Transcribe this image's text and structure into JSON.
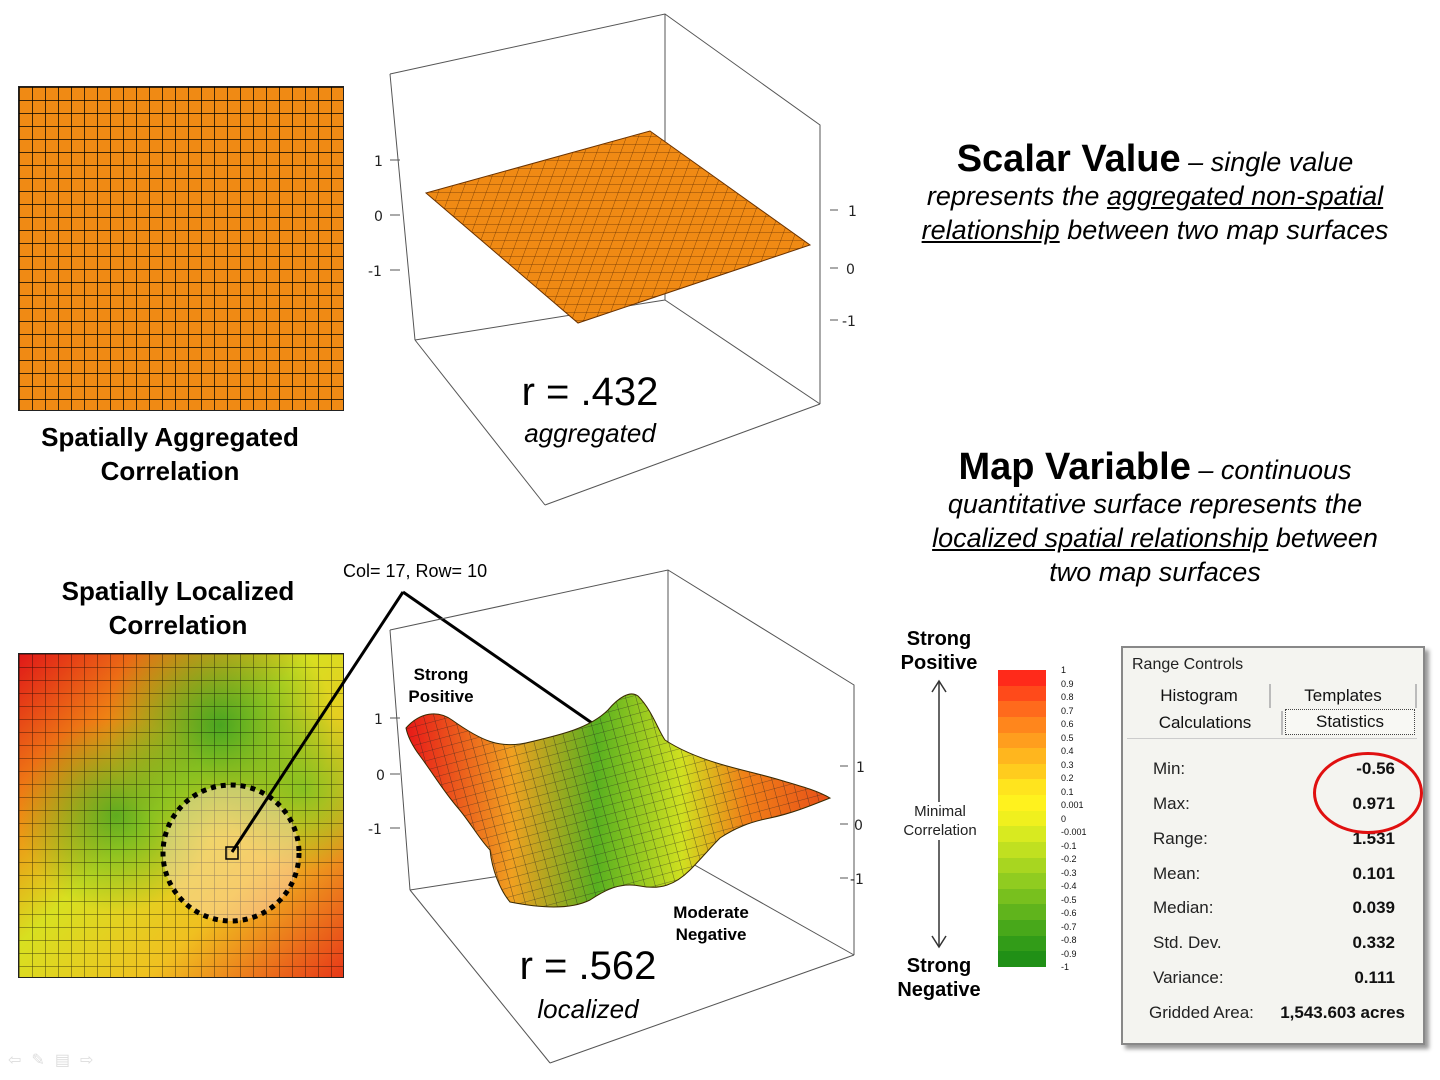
{
  "top": {
    "caption_line1": "Spatially Aggregated",
    "caption_line2": "Correlation",
    "r_value": "r = .432",
    "r_label": "aggregated",
    "z_ticks": [
      "1",
      "0",
      "-1"
    ],
    "right_ticks": [
      "1",
      "0",
      "-1"
    ]
  },
  "bottom": {
    "caption_line1": "Spatially Localized",
    "caption_line2": "Correlation",
    "cell_label": "Col= 17, Row= 10",
    "r_value": "r = .562",
    "r_label": "localized",
    "peak_label_1": "Strong",
    "peak_label_2": "Positive",
    "valley_label_1": "Moderate",
    "valley_label_2": "Negative",
    "z_ticks": [
      "1",
      "0",
      "-1"
    ],
    "right_ticks": [
      "1",
      "0",
      "-1"
    ]
  },
  "scalar": {
    "title": "Scalar Value",
    "dash": "–",
    "line1": "single value",
    "line2a": "represents the",
    "line2u": "aggregated non-spatial",
    "line3u": "relationship",
    "line3b": "between two map surfaces"
  },
  "mapvar": {
    "title": "Map Variable",
    "dash": "–",
    "line1": "continuous",
    "line2": "quantitative surface represents the",
    "line3u": "localized spatial relationship",
    "line3b": "between",
    "line4": "two map surfaces"
  },
  "legend": {
    "top_1": "Strong",
    "top_2": "Positive",
    "mid_1": "Minimal",
    "mid_2": "Correlation",
    "bottom_1": "Strong",
    "bottom_2": "Negative",
    "values": [
      "1",
      "0.9",
      "0.8",
      "0.7",
      "0.6",
      "0.5",
      "0.4",
      "0.3",
      "0.2",
      "0.1",
      "0.001",
      "0",
      "-0.001",
      "-0.1",
      "-0.2",
      "-0.3",
      "-0.4",
      "-0.5",
      "-0.6",
      "-0.7",
      "-0.8",
      "-0.9",
      "-1"
    ],
    "colors": [
      "#ff2a1a",
      "#ff4a1a",
      "#ff6a1c",
      "#ff861c",
      "#ff9e1e",
      "#ffb61e",
      "#ffcc1e",
      "#ffe41e",
      "#fff21e",
      "#f0f01e",
      "#d8ea20",
      "#c0e020",
      "#a8d620",
      "#90cc20",
      "#78c01e",
      "#60b41c",
      "#48a81a",
      "#329c18",
      "#209016"
    ]
  },
  "panel": {
    "title": "Range Controls",
    "tabs": [
      "Histogram",
      "Templates",
      "Calculations",
      "Statistics"
    ],
    "active_tab": "Statistics",
    "stats": [
      {
        "label": "Min:",
        "value": "-0.56"
      },
      {
        "label": "Max:",
        "value": "0.971"
      },
      {
        "label": "Range:",
        "value": "1.531"
      },
      {
        "label": "Mean:",
        "value": "0.101"
      },
      {
        "label": "Median:",
        "value": "0.039"
      },
      {
        "label": "Std. Dev.",
        "value": "0.332"
      },
      {
        "label": "Variance:",
        "value": "0.111"
      },
      {
        "label": "Gridded Area:",
        "value": "1,543.603 acres"
      }
    ]
  }
}
